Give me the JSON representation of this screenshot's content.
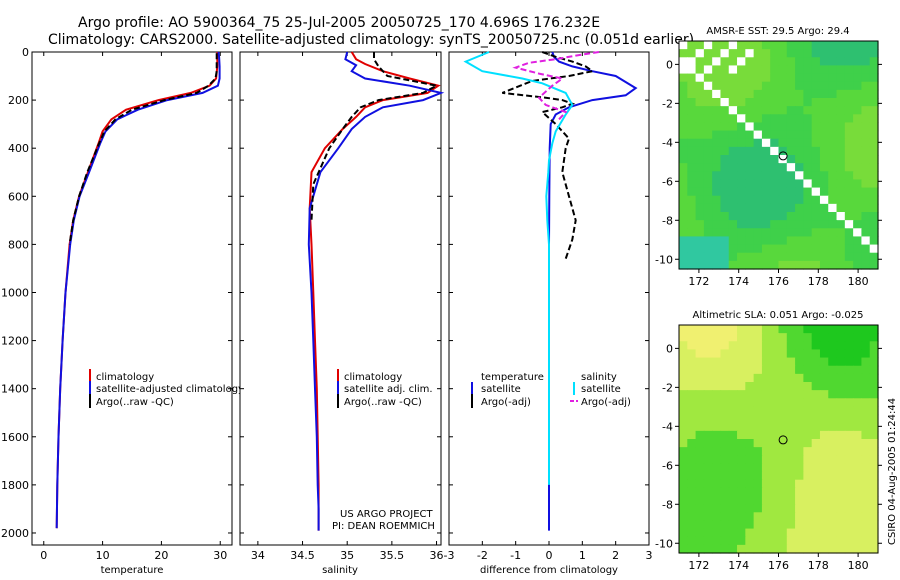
{
  "title_line1": "Argo profile: AO 5900364_75 25-Jul-2005 20050725_170 4.696S 176.232E",
  "title_line2": "Climatology: CARS2000. Satellite-adjusted climatology: synTS_20050725.nc (0.051d earlier)",
  "credit_line1": "US ARGO PROJECT",
  "credit_line2": "PI: DEAN ROEMMICH",
  "side_stamp": "CSIRO 04-Aug-2005 01:24:44",
  "colors": {
    "climatology": "#e00000",
    "satellite": "#1010e0",
    "argo": "#000000",
    "sal_satellite": "#00e0ff",
    "sal_argo": "#e020e0"
  },
  "chart_data": [
    {
      "type": "line",
      "name": "temperature-panel",
      "xlabel": "temperature",
      "ylabel": "",
      "xlim": [
        -2,
        32
      ],
      "ylim": [
        2050,
        0
      ],
      "xticks": [
        0,
        10,
        20,
        30
      ],
      "yticks": [
        0,
        200,
        400,
        600,
        800,
        1000,
        1200,
        1400,
        1600,
        1800,
        2000
      ],
      "legend": [
        "climatology",
        "satellite-adjusted climatology",
        "Argo(..raw -QC)"
      ],
      "series": [
        {
          "name": "climatology",
          "color_key": "climatology",
          "dash": "",
          "x": [
            29.5,
            29.5,
            29.5,
            29.3,
            28.2,
            25,
            19.5,
            14,
            11.5,
            10,
            9.3,
            7.5,
            6,
            5,
            4.4,
            3.7,
            3.2,
            2.8,
            2.5,
            2.3,
            2.2
          ],
          "y": [
            0,
            20,
            60,
            110,
            140,
            170,
            200,
            240,
            280,
            330,
            380,
            500,
            600,
            700,
            800,
            1000,
            1200,
            1400,
            1600,
            1800,
            1980
          ]
        },
        {
          "name": "satellite-adjusted climatology",
          "color_key": "satellite",
          "dash": "",
          "x": [
            29.7,
            29.8,
            29.9,
            29.9,
            29.6,
            27,
            21,
            16,
            12.5,
            10.5,
            9.6,
            7.7,
            6.1,
            5.1,
            4.5,
            3.7,
            3.2,
            2.8,
            2.5,
            2.3,
            2.2
          ],
          "y": [
            0,
            20,
            60,
            110,
            140,
            170,
            200,
            240,
            280,
            330,
            380,
            500,
            600,
            700,
            800,
            1000,
            1200,
            1400,
            1600,
            1800,
            1980
          ]
        },
        {
          "name": "Argo(..raw -QC)",
          "color_key": "argo",
          "dash": "6,3",
          "x": [
            29.4,
            29.4,
            29.4,
            29.2,
            28,
            26,
            20.5,
            15,
            12.2,
            10.3,
            9.4,
            7.4,
            6,
            5,
            4.4
          ],
          "y": [
            5,
            40,
            80,
            110,
            140,
            170,
            200,
            240,
            280,
            330,
            380,
            500,
            600,
            700,
            800
          ]
        }
      ]
    },
    {
      "type": "line",
      "name": "salinity-panel",
      "xlabel": "salinity",
      "ylabel": "",
      "xlim": [
        33.8,
        36.05
      ],
      "ylim": [
        2050,
        0
      ],
      "xticks": [
        34,
        34.5,
        35,
        35.5,
        36
      ],
      "yticks": [
        0,
        200,
        400,
        600,
        800,
        1000,
        1200,
        1400,
        1600,
        1800,
        2000
      ],
      "legend": [
        "climatology",
        "satellite adj. clim.",
        "Argo(..raw -QC)"
      ],
      "series": [
        {
          "name": "climatology",
          "color_key": "climatology",
          "dash": "",
          "x": [
            35.05,
            35.1,
            35.2,
            35.4,
            35.7,
            36.02,
            35.9,
            35.4,
            35.2,
            35.1,
            34.95,
            34.75,
            34.6,
            34.58,
            34.6,
            34.62,
            34.64,
            34.66,
            34.67,
            34.68,
            34.68,
            34.68
          ],
          "y": [
            0,
            30,
            50,
            80,
            110,
            140,
            170,
            200,
            230,
            270,
            320,
            400,
            500,
            650,
            800,
            1000,
            1200,
            1400,
            1600,
            1800,
            1900,
            1990
          ]
        },
        {
          "name": "satellite adj. clim.",
          "color_key": "satellite",
          "dash": "",
          "x": [
            35,
            34.98,
            35.1,
            35.05,
            35.2,
            35.7,
            36.05,
            35.85,
            35.4,
            35.2,
            35.05,
            34.9,
            34.7,
            34.58,
            34.57,
            34.6,
            34.62,
            34.64,
            34.66,
            34.67,
            34.68,
            34.68
          ],
          "y": [
            0,
            30,
            55,
            80,
            110,
            140,
            170,
            200,
            230,
            270,
            320,
            400,
            500,
            650,
            800,
            1000,
            1200,
            1400,
            1600,
            1800,
            1900,
            1990
          ]
        },
        {
          "name": "Argo(..raw -QC)",
          "color_key": "argo",
          "dash": "6,3",
          "x": [
            35.3,
            35.3,
            35.35,
            35.45,
            35.8,
            36,
            35.85,
            35.35,
            35.15,
            35.05,
            34.95,
            34.8,
            34.62,
            34.6
          ],
          "y": [
            0,
            30,
            60,
            100,
            125,
            140,
            170,
            200,
            230,
            270,
            320,
            400,
            550,
            700
          ]
        }
      ]
    },
    {
      "type": "line",
      "name": "difference-panel",
      "xlabel": "difference from climatology",
      "ylabel": "",
      "xlim": [
        -3,
        3
      ],
      "ylim": [
        2050,
        0
      ],
      "xticks": [
        -3,
        -2,
        -1,
        0,
        1,
        2,
        3
      ],
      "yticks": [
        0,
        200,
        400,
        600,
        800,
        1000,
        1200,
        1400,
        1600,
        1800,
        2000
      ],
      "legend_temperature_title": "temperature",
      "legend_temperature": [
        "satellite",
        "Argo(-adj)"
      ],
      "legend_salinity_title": "salinity",
      "legend_salinity": [
        "satellite",
        "Argo(-adj)"
      ],
      "series": [
        {
          "name": "temperature satellite",
          "color_key": "satellite",
          "dash": "",
          "x": [
            0.1,
            0.15,
            0.3,
            0.7,
            1.3,
            2,
            2.6,
            2.3,
            1.3,
            0.6,
            0.2,
            0.05,
            0.02,
            0.01,
            0,
            0,
            0,
            0,
            0,
            0
          ],
          "y": [
            0,
            20,
            40,
            60,
            80,
            100,
            150,
            180,
            200,
            230,
            260,
            300,
            400,
            600,
            800,
            1000,
            1200,
            1400,
            1600,
            1990
          ]
        },
        {
          "name": "temperature Argo(-adj)",
          "color_key": "argo",
          "dash": "6,3",
          "x": [
            -0.2,
            0.2,
            0.7,
            1.1,
            1.3,
            0.6,
            -0.5,
            -1.4,
            -0.1,
            0.4,
            0.7,
            0.4,
            -0.2,
            0.2,
            0.6,
            0.5,
            0.4,
            0.6,
            0.8,
            0.7,
            0.5
          ],
          "y": [
            0,
            20,
            40,
            60,
            80,
            100,
            120,
            170,
            190,
            200,
            215,
            230,
            250,
            300,
            360,
            400,
            500,
            600,
            700,
            780,
            860
          ]
        },
        {
          "name": "salinity satellite",
          "color_key": "sal_satellite",
          "dash": "",
          "x": [
            -1.8,
            -2.5,
            -2,
            -0.8,
            -0.2,
            0.5,
            0.7,
            0.5,
            0.2,
            0.1,
            0,
            -0.02,
            -0.05,
            -0.08,
            -0.05,
            0,
            0,
            0,
            0,
            0
          ],
          "y": [
            0,
            40,
            80,
            110,
            130,
            170,
            220,
            260,
            330,
            380,
            450,
            500,
            550,
            600,
            700,
            800,
            1000,
            1200,
            1500,
            1800
          ]
        },
        {
          "name": "salinity Argo(-adj)",
          "color_key": "sal_argo",
          "dash": "6,3",
          "x": [
            1.5,
            0.8,
            0.2,
            -0.6,
            -1,
            -0.3,
            0.4,
            0.1,
            -0.3,
            -0.1,
            0.5,
            0.3
          ],
          "y": [
            0,
            15,
            30,
            45,
            65,
            90,
            110,
            140,
            190,
            220,
            250,
            280
          ]
        }
      ]
    },
    {
      "type": "heatmap",
      "name": "sst-map",
      "title": "AMSR-E SST: 29.5 Argo: 29.4",
      "xlim": [
        171,
        181
      ],
      "ylim": [
        -10.5,
        1.2
      ],
      "xticks": [
        172,
        174,
        176,
        178,
        180
      ],
      "yticks": [
        0,
        -2,
        -4,
        -6,
        -8,
        -10
      ],
      "argo_position": {
        "lon": 176.232,
        "lat": -4.696
      },
      "palette": [
        "#2ec070",
        "#3fd04a",
        "#58d83c",
        "#78dc3a",
        "#30c8a0"
      ],
      "missing_color": "#ffffff"
    },
    {
      "type": "heatmap",
      "name": "sla-map",
      "title": "Altimetric SLA: 0.051 Argo: -0.025",
      "xlim": [
        171,
        181
      ],
      "ylim": [
        -10.5,
        1.2
      ],
      "xticks": [
        172,
        174,
        176,
        178,
        180
      ],
      "yticks": [
        0,
        -2,
        -4,
        -6,
        -8,
        -10
      ],
      "argo_position": {
        "lon": 176.232,
        "lat": -4.696
      },
      "palette": [
        "#1ec81e",
        "#50d830",
        "#a0e840",
        "#d8f060",
        "#f0f070"
      ]
    }
  ]
}
